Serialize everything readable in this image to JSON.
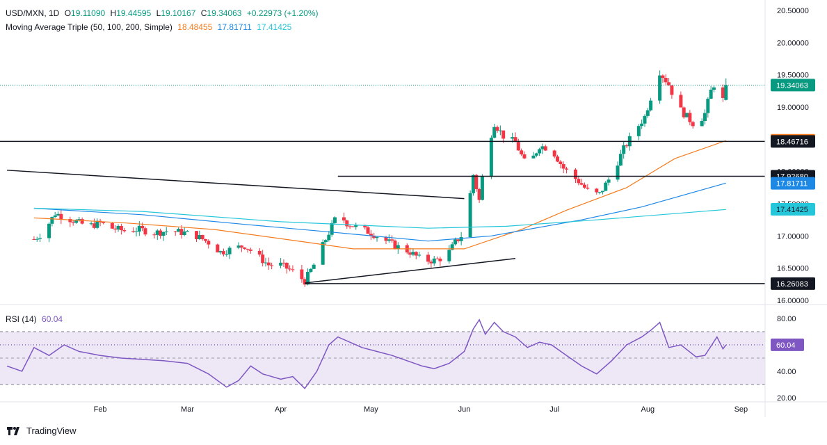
{
  "header": {
    "symbol": "USD/MXN, 1D",
    "ohlc": [
      {
        "k": "O",
        "v": "19.11090"
      },
      {
        "k": "H",
        "v": "19.44595"
      },
      {
        "k": "L",
        "v": "19.10167"
      },
      {
        "k": "C",
        "v": "19.34063"
      }
    ],
    "change": "+0.22973 (+1.20%)",
    "ma_label": "Moving Average Triple (50, 100, 200, Simple)",
    "ma_values": [
      "18.48455",
      "17.81711",
      "17.41425"
    ],
    "rsi_label": "RSI (14)",
    "rsi_value": "60.04"
  },
  "brand": {
    "name": "TradingView"
  },
  "colors": {
    "up": "#089981",
    "down": "#f23645",
    "ma50": "#f57c1f",
    "ma100": "#1e88e5",
    "ma200": "#26c6da",
    "rsi": "#7e57c2",
    "rsi_band": "#ede7f6"
  },
  "chart_data": [
    {
      "type": "candlestick",
      "title": "USD/MXN, 1D",
      "ylim": [
        16.0,
        20.5
      ],
      "y_ticks": [
        "20.50000",
        "20.00000",
        "19.50000",
        "19.00000",
        "18.50000",
        "18.00000",
        "17.50000",
        "17.00000",
        "16.50000",
        "16.00000"
      ],
      "x_ticks": [
        "Feb",
        "Mar",
        "Apr",
        "May",
        "Jun",
        "Jul",
        "Aug",
        "Sep"
      ],
      "close_path": [
        [
          "2024-01-10",
          16.95
        ],
        [
          "2024-01-13",
          17.05
        ],
        [
          "2024-01-17",
          17.35
        ],
        [
          "2024-01-20",
          17.3
        ],
        [
          "2024-01-24",
          17.22
        ],
        [
          "2024-01-28",
          17.15
        ],
        [
          "2024-02-01",
          17.2
        ],
        [
          "2024-02-05",
          17.12
        ],
        [
          "2024-02-09",
          17.08
        ],
        [
          "2024-02-14",
          17.1
        ],
        [
          "2024-02-19",
          17.05
        ],
        [
          "2024-02-24",
          17.08
        ],
        [
          "2024-02-29",
          17.05
        ],
        [
          "2024-03-04",
          17.0
        ],
        [
          "2024-03-08",
          16.9
        ],
        [
          "2024-03-12",
          16.75
        ],
        [
          "2024-03-16",
          16.8
        ],
        [
          "2024-03-20",
          16.85
        ],
        [
          "2024-03-24",
          16.7
        ],
        [
          "2024-03-28",
          16.55
        ],
        [
          "2024-04-01",
          16.55
        ],
        [
          "2024-04-05",
          16.45
        ],
        [
          "2024-04-09",
          16.3
        ],
        [
          "2024-04-12",
          16.55
        ],
        [
          "2024-04-15",
          16.85
        ],
        [
          "2024-04-18",
          17.15
        ],
        [
          "2024-04-20",
          17.35
        ],
        [
          "2024-04-23",
          17.2
        ],
        [
          "2024-04-27",
          17.12
        ],
        [
          "2024-05-01",
          17.05
        ],
        [
          "2024-05-05",
          16.95
        ],
        [
          "2024-05-09",
          16.85
        ],
        [
          "2024-05-14",
          16.75
        ],
        [
          "2024-05-18",
          16.62
        ],
        [
          "2024-05-22",
          16.62
        ],
        [
          "2024-05-26",
          16.68
        ],
        [
          "2024-05-29",
          16.9
        ],
        [
          "2024-06-01",
          17.05
        ],
        [
          "2024-06-04",
          17.95
        ],
        [
          "2024-06-06",
          17.55
        ],
        [
          "2024-06-08",
          18.25
        ],
        [
          "2024-06-11",
          18.75
        ],
        [
          "2024-06-14",
          18.55
        ],
        [
          "2024-06-18",
          18.45
        ],
        [
          "2024-06-22",
          18.05
        ],
        [
          "2024-06-26",
          18.4
        ],
        [
          "2024-06-30",
          18.35
        ],
        [
          "2024-07-04",
          18.05
        ],
        [
          "2024-07-09",
          17.85
        ],
        [
          "2024-07-13",
          17.65
        ],
        [
          "2024-07-16",
          17.65
        ],
        [
          "2024-07-20",
          17.95
        ],
        [
          "2024-07-24",
          18.35
        ],
        [
          "2024-07-28",
          18.65
        ],
        [
          "2024-07-31",
          18.85
        ],
        [
          "2024-08-02",
          19.15
        ],
        [
          "2024-08-05",
          19.55
        ],
        [
          "2024-08-08",
          19.35
        ],
        [
          "2024-08-11",
          19.0
        ],
        [
          "2024-08-14",
          18.85
        ],
        [
          "2024-08-17",
          18.7
        ],
        [
          "2024-08-20",
          18.9
        ],
        [
          "2024-08-22",
          19.25
        ],
        [
          "2024-08-24",
          19.45
        ],
        [
          "2024-08-26",
          19.11
        ],
        [
          "2024-08-27",
          19.34
        ]
      ],
      "last": {
        "open": 19.1109,
        "high": 19.44595,
        "low": 19.10167,
        "close": 19.34063
      },
      "series": [
        {
          "name": "MA 50",
          "value": 18.48455,
          "points": [
            [
              "2024-01-10",
              17.28
            ],
            [
              "2024-02-10",
              17.2
            ],
            [
              "2024-03-10",
              17.1
            ],
            [
              "2024-04-10",
              16.9
            ],
            [
              "2024-04-25",
              16.8
            ],
            [
              "2024-05-20",
              16.8
            ],
            [
              "2024-06-01",
              16.8
            ],
            [
              "2024-06-20",
              17.1
            ],
            [
              "2024-07-05",
              17.4
            ],
            [
              "2024-07-25",
              17.75
            ],
            [
              "2024-08-10",
              18.2
            ],
            [
              "2024-08-27",
              18.48
            ]
          ]
        },
        {
          "name": "MA 100",
          "value": 17.81711,
          "points": [
            [
              "2024-01-10",
              17.43
            ],
            [
              "2024-02-15",
              17.33
            ],
            [
              "2024-03-20",
              17.18
            ],
            [
              "2024-04-20",
              17.05
            ],
            [
              "2024-05-20",
              16.92
            ],
            [
              "2024-06-10",
              17.0
            ],
            [
              "2024-07-10",
              17.25
            ],
            [
              "2024-07-30",
              17.45
            ],
            [
              "2024-08-27",
              17.82
            ]
          ]
        },
        {
          "name": "MA 200",
          "value": 17.41425,
          "points": [
            [
              "2024-01-10",
              17.43
            ],
            [
              "2024-02-15",
              17.38
            ],
            [
              "2024-04-01",
              17.22
            ],
            [
              "2024-05-20",
              17.12
            ],
            [
              "2024-06-15",
              17.15
            ],
            [
              "2024-07-15",
              17.25
            ],
            [
              "2024-08-27",
              17.41
            ]
          ]
        }
      ],
      "levels": [
        {
          "label": "18.46716",
          "value": 18.46716
        },
        {
          "label": "17.92680",
          "value": 17.9268,
          "from": "2024-04-20"
        },
        {
          "label": "16.26083",
          "value": 16.26083,
          "from": "2024-04-09"
        }
      ],
      "trendlines": [
        {
          "from": [
            "2024-01-01",
            18.02
          ],
          "to": [
            "2024-06-01",
            17.58
          ]
        },
        {
          "from": [
            "2024-04-09",
            16.27
          ],
          "to": [
            "2024-06-18",
            16.65
          ]
        }
      ],
      "price_labels": [
        "19.34063",
        "18.48455",
        "18.46716",
        "17.92680",
        "17.81711",
        "17.41425",
        "16.26083"
      ]
    },
    {
      "type": "line",
      "title": "RSI (14)",
      "ylim": [
        20,
        80
      ],
      "y_ticks": [
        "80.00",
        "60.00",
        "40.00",
        "20.00"
      ],
      "band": [
        30,
        70
      ],
      "midline": 50,
      "last_value": "60.04",
      "points": [
        [
          "2024-01-01",
          44
        ],
        [
          "2024-01-06",
          40
        ],
        [
          "2024-01-10",
          58
        ],
        [
          "2024-01-15",
          52
        ],
        [
          "2024-01-20",
          60
        ],
        [
          "2024-01-25",
          55
        ],
        [
          "2024-02-01",
          52
        ],
        [
          "2024-02-08",
          50
        ],
        [
          "2024-02-15",
          49
        ],
        [
          "2024-02-22",
          48
        ],
        [
          "2024-03-01",
          46
        ],
        [
          "2024-03-08",
          38
        ],
        [
          "2024-03-14",
          28
        ],
        [
          "2024-03-18",
          33
        ],
        [
          "2024-03-22",
          44
        ],
        [
          "2024-03-26",
          38
        ],
        [
          "2024-04-01",
          34
        ],
        [
          "2024-04-05",
          36
        ],
        [
          "2024-04-09",
          27
        ],
        [
          "2024-04-13",
          40
        ],
        [
          "2024-04-17",
          60
        ],
        [
          "2024-04-20",
          66
        ],
        [
          "2024-04-24",
          62
        ],
        [
          "2024-04-28",
          58
        ],
        [
          "2024-05-03",
          55
        ],
        [
          "2024-05-08",
          52
        ],
        [
          "2024-05-13",
          48
        ],
        [
          "2024-05-18",
          44
        ],
        [
          "2024-05-22",
          42
        ],
        [
          "2024-05-27",
          46
        ],
        [
          "2024-06-01",
          55
        ],
        [
          "2024-06-04",
          72
        ],
        [
          "2024-06-06",
          79
        ],
        [
          "2024-06-08",
          68
        ],
        [
          "2024-06-11",
          77
        ],
        [
          "2024-06-14",
          70
        ],
        [
          "2024-06-18",
          66
        ],
        [
          "2024-06-22",
          58
        ],
        [
          "2024-06-26",
          62
        ],
        [
          "2024-06-30",
          60
        ],
        [
          "2024-07-05",
          52
        ],
        [
          "2024-07-10",
          44
        ],
        [
          "2024-07-15",
          38
        ],
        [
          "2024-07-20",
          48
        ],
        [
          "2024-07-25",
          60
        ],
        [
          "2024-07-30",
          66
        ],
        [
          "2024-08-02",
          71
        ],
        [
          "2024-08-05",
          77
        ],
        [
          "2024-08-08",
          58
        ],
        [
          "2024-08-12",
          60
        ],
        [
          "2024-08-17",
          51
        ],
        [
          "2024-08-20",
          52
        ],
        [
          "2024-08-24",
          66
        ],
        [
          "2024-08-26",
          57
        ],
        [
          "2024-08-27",
          60
        ]
      ]
    }
  ]
}
